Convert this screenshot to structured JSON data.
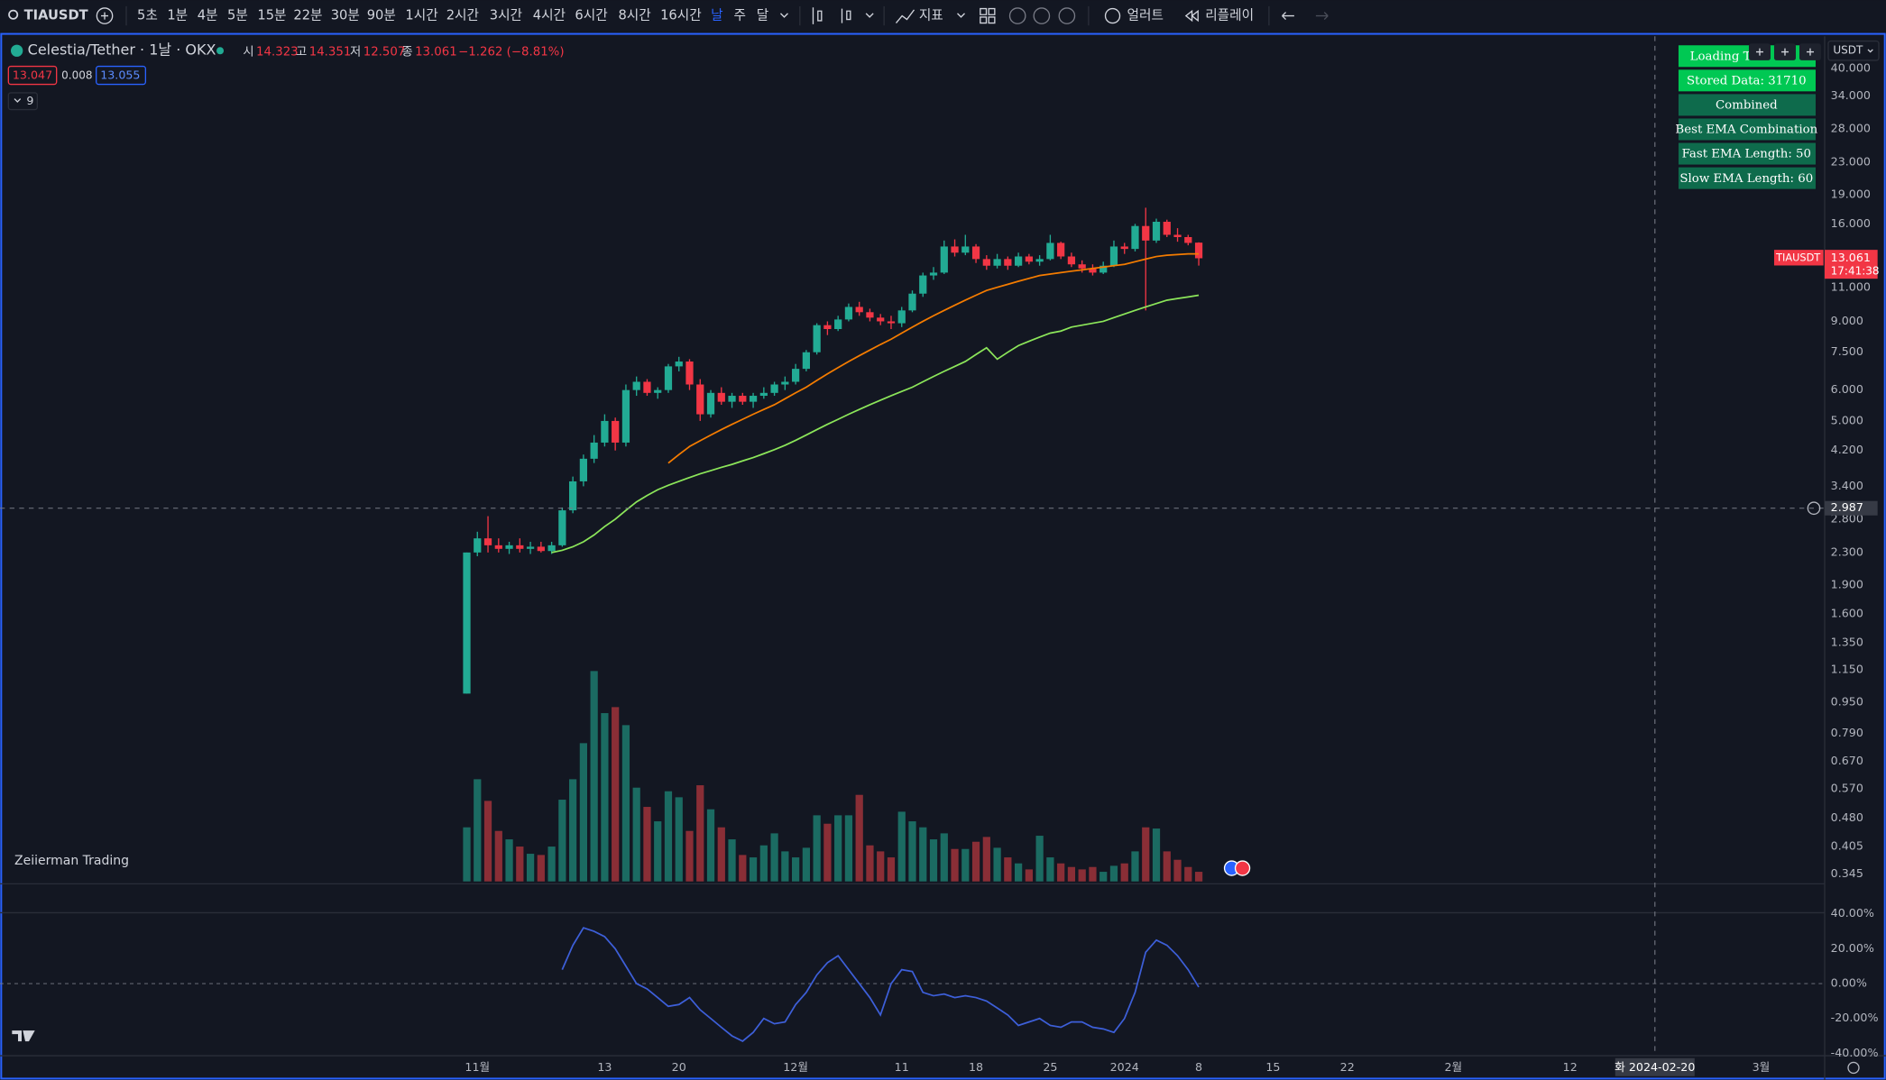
{
  "toolbar": {
    "symbol": "TIAUSDT",
    "intervals": [
      "5초",
      "1분",
      "4분",
      "5분",
      "15분",
      "22분",
      "30분",
      "90분",
      "1시간",
      "2시간",
      "3시간",
      "4시간",
      "6시간",
      "8시간",
      "16시간",
      "날",
      "주",
      "달"
    ],
    "active": 15,
    "indicators": "지표",
    "alert": "얼러트",
    "replay": "리플레이"
  },
  "legend": {
    "title": "Celestia/Tether · 1날 · OKX",
    "open_label": "시",
    "high_label": "고",
    "low_label": "저",
    "close_label": "종",
    "change": "−1.262 (−8.81%)",
    "bid": "13.047",
    "spread": "0.008",
    "ask": "13.055",
    "collapsed_count": "9"
  },
  "watermark": "Zeiierman Trading",
  "panel": [
    "Loading Ti",
    "Stored Data: 31710",
    "Combined",
    "Best EMA Combination",
    "Fast EMA Length: 50",
    "Slow EMA Length: 60"
  ],
  "price_scale": {
    "currency": "USDT",
    "symbol_label": "TIAUSDT",
    "countdown": "17:41:38"
  },
  "chart_data": {
    "type": "candlestick",
    "x": [
      "2023-10-31",
      "2023-11-01",
      "2023-11-02",
      "2023-11-03",
      "2023-11-04",
      "2023-11-05",
      "2023-11-06",
      "2023-11-07",
      "2023-11-08",
      "2023-11-09",
      "2023-11-10",
      "2023-11-11",
      "2023-11-12",
      "2023-11-13",
      "2023-11-14",
      "2023-11-15",
      "2023-11-16",
      "2023-11-17",
      "2023-11-18",
      "2023-11-19",
      "2023-11-20",
      "2023-11-21",
      "2023-11-22",
      "2023-11-23",
      "2023-11-24",
      "2023-11-25",
      "2023-11-26",
      "2023-11-27",
      "2023-11-28",
      "2023-11-29",
      "2023-11-30",
      "2023-12-01",
      "2023-12-02",
      "2023-12-03",
      "2023-12-04",
      "2023-12-05",
      "2023-12-06",
      "2023-12-07",
      "2023-12-08",
      "2023-12-09",
      "2023-12-10",
      "2023-12-11",
      "2023-12-12",
      "2023-12-13",
      "2023-12-14",
      "2023-12-15",
      "2023-12-16",
      "2023-12-17",
      "2023-12-18",
      "2023-12-19",
      "2023-12-20",
      "2023-12-21",
      "2023-12-22",
      "2023-12-23",
      "2023-12-24",
      "2023-12-25",
      "2023-12-26",
      "2023-12-27",
      "2023-12-28",
      "2023-12-29",
      "2023-12-30",
      "2023-12-31",
      "2024-01-01",
      "2024-01-02",
      "2024-01-03",
      "2024-01-04",
      "2024-01-05",
      "2024-01-06",
      "2024-01-07",
      "2024-01-08"
    ],
    "open": [
      1.0,
      2.3,
      2.5,
      2.4,
      2.35,
      2.4,
      2.35,
      2.38,
      2.32,
      2.4,
      2.95,
      3.5,
      4.0,
      4.4,
      5.0,
      4.4,
      6.0,
      6.3,
      5.9,
      6.0,
      6.9,
      7.1,
      6.2,
      5.2,
      5.9,
      5.6,
      5.8,
      5.6,
      5.8,
      5.9,
      6.2,
      6.3,
      6.8,
      7.5,
      8.8,
      8.6,
      9.1,
      9.8,
      9.5,
      9.2,
      9.0,
      8.9,
      9.6,
      10.6,
      11.8,
      12.0,
      14.0,
      13.5,
      14.0,
      13.0,
      12.5,
      13.0,
      12.5,
      13.2,
      12.8,
      13.0,
      14.3,
      13.2,
      12.6,
      12.3,
      12.0,
      12.5,
      14.0,
      13.8,
      15.8,
      14.5,
      16.2,
      15.0,
      14.8,
      14.323
    ],
    "high": [
      2.3,
      2.6,
      2.85,
      2.5,
      2.45,
      2.5,
      2.45,
      2.45,
      2.45,
      3.0,
      3.6,
      4.1,
      4.6,
      5.2,
      5.1,
      6.2,
      6.5,
      6.4,
      6.1,
      7.0,
      7.3,
      7.2,
      6.4,
      6.0,
      6.1,
      5.9,
      5.9,
      5.9,
      6.1,
      6.3,
      6.5,
      7.0,
      7.6,
      8.9,
      9.0,
      9.3,
      10.0,
      10.1,
      9.7,
      9.4,
      9.3,
      9.8,
      10.8,
      12.0,
      12.4,
      14.5,
      14.6,
      15.0,
      14.2,
      13.3,
      13.4,
      13.2,
      13.5,
      13.4,
      13.3,
      15.0,
      14.4,
      13.5,
      12.9,
      12.6,
      12.8,
      14.5,
      14.3,
      16.0,
      17.6,
      16.5,
      16.4,
      15.6,
      15.0,
      14.351
    ],
    "low": [
      1.0,
      2.25,
      2.3,
      2.3,
      2.28,
      2.3,
      2.28,
      2.3,
      2.28,
      2.38,
      2.9,
      3.4,
      3.9,
      4.3,
      4.2,
      4.3,
      5.8,
      5.8,
      5.7,
      5.9,
      6.7,
      6.0,
      5.0,
      5.1,
      5.5,
      5.4,
      5.5,
      5.4,
      5.7,
      5.8,
      6.0,
      6.2,
      6.7,
      7.4,
      8.3,
      8.5,
      9.0,
      9.3,
      9.0,
      8.8,
      8.6,
      8.7,
      9.5,
      10.4,
      11.5,
      11.9,
      13.2,
      13.3,
      12.7,
      12.2,
      12.3,
      12.2,
      12.4,
      12.6,
      12.5,
      12.9,
      13.0,
      12.4,
      12.0,
      11.8,
      11.9,
      12.4,
      13.4,
      13.6,
      9.6,
      14.3,
      14.8,
      14.4,
      14.1,
      12.507
    ],
    "close": [
      2.3,
      2.5,
      2.4,
      2.35,
      2.4,
      2.35,
      2.38,
      2.32,
      2.4,
      2.95,
      3.5,
      4.0,
      4.4,
      5.0,
      4.4,
      6.0,
      6.3,
      5.9,
      6.0,
      6.9,
      7.1,
      6.2,
      5.2,
      5.9,
      5.6,
      5.8,
      5.6,
      5.8,
      5.9,
      6.2,
      6.3,
      6.8,
      7.5,
      8.8,
      8.6,
      9.1,
      9.8,
      9.5,
      9.2,
      9.0,
      8.9,
      9.6,
      10.6,
      11.8,
      12.0,
      14.0,
      13.5,
      14.0,
      13.0,
      12.5,
      13.0,
      12.5,
      13.2,
      12.8,
      13.0,
      14.3,
      13.2,
      12.6,
      12.3,
      12.0,
      12.5,
      14.0,
      13.8,
      15.8,
      14.5,
      16.2,
      15.0,
      14.8,
      14.3,
      13.061
    ],
    "volume": [
      45,
      85,
      67,
      42,
      35,
      29,
      23,
      22,
      29,
      68,
      85,
      115,
      175,
      140,
      145,
      130,
      78,
      62,
      50,
      75,
      70,
      42,
      80,
      60,
      45,
      35,
      22,
      20,
      30,
      40,
      25,
      20,
      28,
      55,
      48,
      55,
      55,
      72,
      30,
      25,
      20,
      58,
      50,
      45,
      35,
      40,
      27,
      27,
      33,
      37,
      28,
      20,
      15,
      10,
      38,
      20,
      15,
      12,
      10,
      12,
      8,
      13,
      15,
      25,
      45,
      44,
      25,
      18,
      12,
      8
    ],
    "up_color": "#22ab94",
    "down_color": "#f23645",
    "up_volume_color": "#1b6b62",
    "down_volume_color": "#8a2e36",
    "series": [
      {
        "color": "#8ce65a",
        "values": [
          null,
          null,
          null,
          null,
          null,
          null,
          null,
          null,
          2.3,
          2.33,
          2.38,
          2.45,
          2.55,
          2.68,
          2.8,
          2.95,
          3.1,
          3.22,
          3.33,
          3.42,
          3.5,
          3.58,
          3.66,
          3.73,
          3.8,
          3.87,
          3.95,
          4.03,
          4.12,
          4.22,
          4.33,
          4.46,
          4.6,
          4.75,
          4.9,
          5.05,
          5.2,
          5.35,
          5.5,
          5.65,
          5.8,
          5.95,
          6.1,
          6.3,
          6.5,
          6.7,
          6.9,
          7.1,
          7.4,
          7.7,
          7.2,
          7.5,
          7.8,
          8.0,
          8.2,
          8.4,
          8.5,
          8.7,
          8.8,
          8.9,
          9.0,
          9.2,
          9.4,
          9.6,
          9.8,
          10.0,
          10.2,
          10.3,
          10.4,
          10.5
        ]
      },
      {
        "color": "#f57c00",
        "values": [
          null,
          null,
          null,
          null,
          null,
          null,
          null,
          null,
          null,
          null,
          null,
          null,
          null,
          null,
          null,
          null,
          null,
          null,
          null,
          3.9,
          4.1,
          4.3,
          4.45,
          4.6,
          4.75,
          4.9,
          5.05,
          5.2,
          5.35,
          5.5,
          5.7,
          5.9,
          6.1,
          6.35,
          6.6,
          6.85,
          7.1,
          7.35,
          7.6,
          7.85,
          8.1,
          8.4,
          8.7,
          9.0,
          9.3,
          9.6,
          9.9,
          10.2,
          10.5,
          10.8,
          11.0,
          11.2,
          11.4,
          11.6,
          11.8,
          11.9,
          12.0,
          12.1,
          12.2,
          12.3,
          12.4,
          12.5,
          12.6,
          12.8,
          13.0,
          13.2,
          13.3,
          13.35,
          13.4,
          13.4
        ]
      },
      {
        "color": "#3d5fd9",
        "axis": "y2",
        "values": [
          null,
          null,
          null,
          null,
          null,
          null,
          null,
          null,
          null,
          8,
          22,
          32,
          30,
          27,
          20,
          10,
          0,
          -3,
          -8,
          -13,
          -12,
          -8,
          -15,
          -20,
          -25,
          -30,
          -33,
          -28,
          -20,
          -23,
          -22,
          -12,
          -5,
          5,
          12,
          16,
          8,
          0,
          -8,
          -18,
          0,
          8,
          7,
          -5,
          -7,
          -6,
          -8,
          -7,
          -8,
          -10,
          -14,
          -18,
          -24,
          -22,
          -20,
          -24,
          -25,
          -22,
          -22,
          -25,
          -26,
          -28,
          -20,
          -5,
          18,
          25,
          22,
          16,
          8,
          -2
        ]
      }
    ],
    "log": true,
    "xlim": [
      "2023-09-17",
      "2024-03-07"
    ],
    "xticks": [
      {
        "value": "2023-11-01",
        "label": "11월"
      },
      {
        "value": "2023-11-13",
        "label": "13"
      },
      {
        "value": "2023-11-20",
        "label": "20"
      },
      {
        "value": "2023-12-01",
        "label": "12월"
      },
      {
        "value": "2023-12-11",
        "label": "11"
      },
      {
        "value": "2023-12-18",
        "label": "18"
      },
      {
        "value": "2023-12-25",
        "label": "25"
      },
      {
        "value": "2024-01-01",
        "label": "2024"
      },
      {
        "value": "2024-01-08",
        "label": "8"
      },
      {
        "value": "2024-01-15",
        "label": "15"
      },
      {
        "value": "2024-01-22",
        "label": "22"
      },
      {
        "value": "2024-02-01",
        "label": "2월"
      },
      {
        "value": "2024-02-12",
        "label": "12"
      },
      {
        "value": "2024-03-01",
        "label": "3월"
      }
    ],
    "ylim": [
      0.33,
      47.4
    ],
    "yticks": [
      {
        "value": 40,
        "label": "40.000"
      },
      {
        "value": 34,
        "label": "34.000"
      },
      {
        "value": 28,
        "label": "28.000"
      },
      {
        "value": 23,
        "label": "23.000"
      },
      {
        "value": 19,
        "label": "19.000"
      },
      {
        "value": 16,
        "label": "16.000"
      },
      {
        "value": 11,
        "label": "11.000"
      },
      {
        "value": 9,
        "label": "9.000"
      },
      {
        "value": 7.5,
        "label": "7.500"
      },
      {
        "value": 6,
        "label": "6.000"
      },
      {
        "value": 5,
        "label": "5.000"
      },
      {
        "value": 4.2,
        "label": "4.200"
      },
      {
        "value": 3.4,
        "label": "3.400"
      },
      {
        "value": 2.8,
        "label": "2.800"
      },
      {
        "value": 2.3,
        "label": "2.300"
      },
      {
        "value": 1.9,
        "label": "1.900"
      },
      {
        "value": 1.6,
        "label": "1.600"
      },
      {
        "value": 1.35,
        "label": "1.350"
      },
      {
        "value": 1.15,
        "label": "1.150"
      },
      {
        "value": 0.95,
        "label": "0.950"
      },
      {
        "value": 0.79,
        "label": "0.790"
      },
      {
        "value": 0.67,
        "label": "0.670"
      },
      {
        "value": 0.57,
        "label": "0.570"
      },
      {
        "value": 0.48,
        "label": "0.480"
      },
      {
        "value": 0.405,
        "label": "0.405"
      },
      {
        "value": 0.345,
        "label": "0.345"
      }
    ],
    "y2lim": [
      -40,
      40
    ],
    "y2ticks": [
      {
        "value": 40,
        "label": "40.00%"
      },
      {
        "value": 20,
        "label": "20.00%"
      },
      {
        "value": 0,
        "label": "0.00%"
      },
      {
        "value": -20,
        "label": "-20.00%"
      },
      {
        "value": -40,
        "label": "-40.00%"
      }
    ],
    "grid": false,
    "crosshair": {
      "x": "2024-02-20",
      "x_label": "화 2024-02-20",
      "y": 2.987
    }
  }
}
